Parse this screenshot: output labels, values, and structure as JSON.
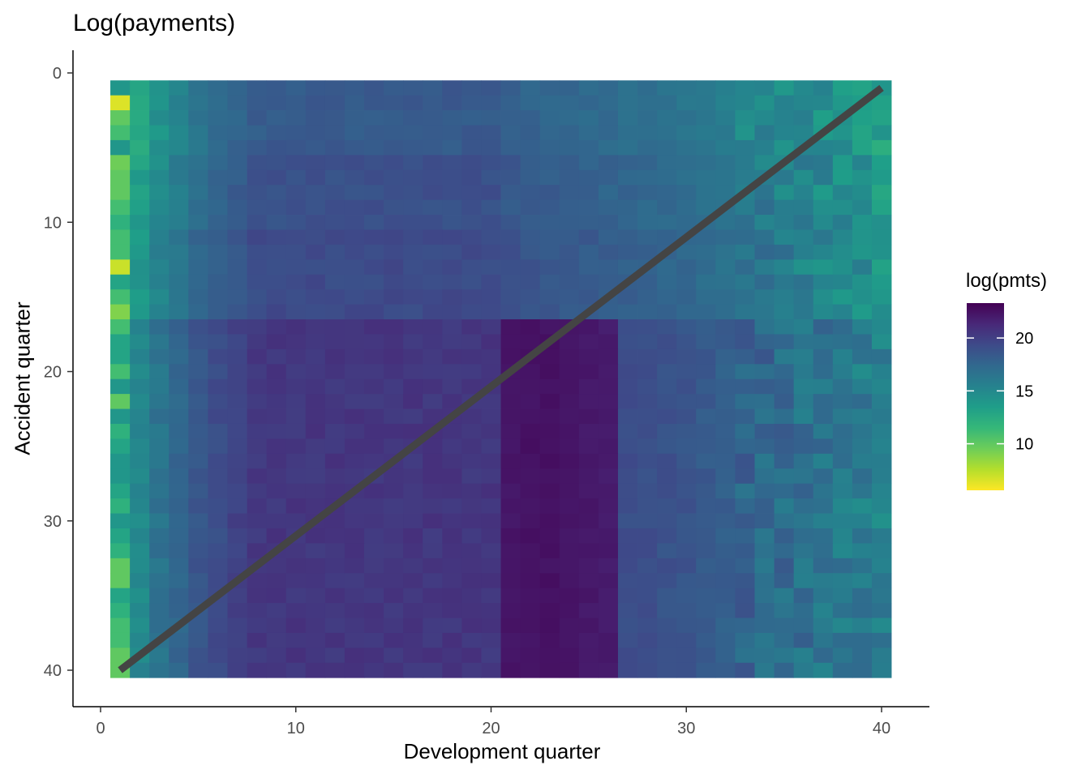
{
  "chart_data": {
    "type": "heatmap",
    "title": "Log(payments)",
    "xlabel": "Development quarter",
    "ylabel": "Accident quarter",
    "x_ticks": [
      0,
      10,
      20,
      30,
      40
    ],
    "y_ticks": [
      0,
      10,
      20,
      30,
      40
    ],
    "xlim": [
      -1.4,
      42.5
    ],
    "ylim": [
      42.5,
      -1.5
    ],
    "y_axis_reversed": true,
    "grid": false,
    "x": [
      1,
      2,
      3,
      4,
      5,
      6,
      7,
      8,
      9,
      10,
      11,
      12,
      13,
      14,
      15,
      16,
      17,
      18,
      19,
      20,
      21,
      22,
      23,
      24,
      25,
      26,
      27,
      28,
      29,
      30,
      31,
      32,
      33,
      34,
      35,
      36,
      37,
      38,
      39,
      40
    ],
    "y": [
      1,
      2,
      3,
      4,
      5,
      6,
      7,
      8,
      9,
      10,
      11,
      12,
      13,
      14,
      15,
      16,
      17,
      18,
      19,
      20,
      21,
      22,
      23,
      24,
      25,
      26,
      27,
      28,
      29,
      30,
      31,
      32,
      33,
      34,
      35,
      36,
      37,
      38,
      39,
      40
    ],
    "first_dev_quarter_values": [
      14,
      6.5,
      10,
      11,
      14,
      9.5,
      10,
      10,
      11,
      12,
      11,
      11,
      7,
      13,
      11,
      9,
      11,
      13,
      13,
      11,
      14,
      10,
      14,
      12,
      13,
      14,
      14,
      13,
      12,
      14,
      13,
      12,
      10,
      10,
      13,
      12,
      11,
      11,
      10,
      10
    ],
    "block": {
      "x_from": 21,
      "x_to": 26,
      "y_from": 17,
      "y_to": 40,
      "value": 22.5
    },
    "reference_line": {
      "x": [
        1,
        40
      ],
      "y": [
        40,
        1
      ],
      "color": "#444444"
    },
    "legend": {
      "title": "log(pmts)",
      "placement": "right",
      "ticks": [
        10,
        15,
        20
      ],
      "min": 5.6,
      "max": 23.3,
      "colors": [
        "#FDE725",
        "#B4DE2C",
        "#6DCD59",
        "#35B779",
        "#1F9E89",
        "#26828E",
        "#31688E",
        "#3E4A89",
        "#482878",
        "#440154"
      ]
    }
  }
}
